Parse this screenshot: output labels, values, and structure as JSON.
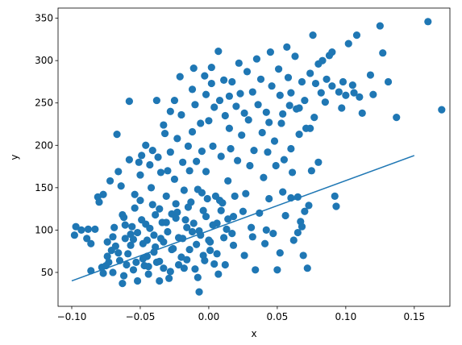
{
  "chart_data": {
    "type": "scatter",
    "title": "",
    "xlabel": "x",
    "ylabel": "y",
    "xlim": [
      -0.11,
      0.176
    ],
    "ylim": [
      10,
      362
    ],
    "x_ticks": [
      -0.1,
      -0.05,
      0.0,
      0.05,
      0.1,
      0.15
    ],
    "x_tick_labels": [
      "−0.10",
      "−0.05",
      "0.00",
      "0.05",
      "0.10",
      "0.15"
    ],
    "y_ticks": [
      50,
      100,
      150,
      200,
      250,
      300,
      350
    ],
    "y_tick_labels": [
      "50",
      "100",
      "150",
      "200",
      "250",
      "300",
      "350"
    ],
    "grid": false,
    "legend": "none",
    "colors": {
      "series": "#1f77b4",
      "axis": "#000000"
    },
    "series": [
      {
        "kind": "scatter",
        "points": [
          [
            -0.098,
            94
          ],
          [
            -0.097,
            104
          ],
          [
            -0.093,
            100
          ],
          [
            -0.089,
            90
          ],
          [
            -0.088,
            101
          ],
          [
            -0.086,
            84
          ],
          [
            -0.086,
            52
          ],
          [
            -0.083,
            101
          ],
          [
            -0.081,
            139
          ],
          [
            -0.08,
            133
          ],
          [
            -0.078,
            56
          ],
          [
            -0.077,
            49
          ],
          [
            -0.077,
            142
          ],
          [
            -0.075,
            58
          ],
          [
            -0.074,
            86
          ],
          [
            -0.073,
            62
          ],
          [
            -0.072,
            158
          ],
          [
            -0.071,
            76
          ],
          [
            -0.07,
            50
          ],
          [
            -0.069,
            103
          ],
          [
            -0.068,
            81
          ],
          [
            -0.067,
            213
          ],
          [
            -0.066,
            169
          ],
          [
            -0.065,
            64
          ],
          [
            -0.064,
            152
          ],
          [
            -0.063,
            118
          ],
          [
            -0.062,
            115
          ],
          [
            -0.063,
            37
          ],
          [
            -0.062,
            46
          ],
          [
            -0.061,
            90
          ],
          [
            -0.06,
            59
          ],
          [
            -0.059,
            72
          ],
          [
            -0.058,
            252
          ],
          [
            -0.058,
            183
          ],
          [
            -0.057,
            95
          ],
          [
            -0.056,
            104
          ],
          [
            -0.055,
            89
          ],
          [
            -0.055,
            53
          ],
          [
            -0.054,
            142
          ],
          [
            -0.054,
            126
          ],
          [
            -0.053,
            62
          ],
          [
            -0.052,
            40
          ],
          [
            -0.051,
            180
          ],
          [
            -0.05,
            165
          ],
          [
            -0.05,
            135
          ],
          [
            -0.049,
            188
          ],
          [
            -0.049,
            112
          ],
          [
            -0.048,
            84
          ],
          [
            -0.047,
            58
          ],
          [
            -0.046,
            200
          ],
          [
            -0.046,
            107
          ],
          [
            -0.045,
            69
          ],
          [
            -0.044,
            48
          ],
          [
            -0.043,
            177
          ],
          [
            -0.042,
            150
          ],
          [
            -0.041,
            194
          ],
          [
            -0.041,
            130
          ],
          [
            -0.04,
            94
          ],
          [
            -0.039,
            80
          ],
          [
            -0.038,
            253
          ],
          [
            -0.038,
            62
          ],
          [
            -0.037,
            186
          ],
          [
            -0.036,
            125
          ],
          [
            -0.036,
            40
          ],
          [
            -0.035,
            168
          ],
          [
            -0.034,
            109
          ],
          [
            -0.033,
            86
          ],
          [
            -0.033,
            55
          ],
          [
            -0.032,
            214
          ],
          [
            -0.031,
            140
          ],
          [
            -0.03,
            170
          ],
          [
            -0.03,
            98
          ],
          [
            -0.029,
            43
          ],
          [
            -0.028,
            192
          ],
          [
            -0.027,
            119
          ],
          [
            -0.026,
            78
          ],
          [
            -0.025,
            253
          ],
          [
            -0.025,
            160
          ],
          [
            -0.024,
            131
          ],
          [
            -0.023,
            208
          ],
          [
            -0.022,
            91
          ],
          [
            -0.022,
            59
          ],
          [
            -0.021,
            281
          ],
          [
            -0.02,
            236
          ],
          [
            -0.019,
            180
          ],
          [
            -0.018,
            147
          ],
          [
            -0.017,
            112
          ],
          [
            -0.016,
            65
          ],
          [
            -0.015,
            199
          ],
          [
            -0.014,
            170
          ],
          [
            -0.013,
            133
          ],
          [
            -0.012,
            216
          ],
          [
            -0.012,
            98
          ],
          [
            -0.011,
            291
          ],
          [
            -0.01,
            248
          ],
          [
            -0.01,
            54
          ],
          [
            -0.009,
            181
          ],
          [
            -0.008,
            148
          ],
          [
            -0.007,
            27
          ],
          [
            -0.006,
            226
          ],
          [
            -0.006,
            94
          ],
          [
            -0.005,
            193
          ],
          [
            -0.004,
            123
          ],
          [
            -0.003,
            282
          ],
          [
            -0.003,
            64
          ],
          [
            -0.002,
            260
          ],
          [
            -0.002,
            169
          ],
          [
            -0.001,
            137
          ],
          [
            0.0,
            229
          ],
          [
            0.0,
            88
          ],
          [
            0.001,
            76
          ],
          [
            0.002,
            292
          ],
          [
            0.003,
            199
          ],
          [
            0.004,
            245
          ],
          [
            0.005,
            140
          ],
          [
            0.006,
            108
          ],
          [
            0.007,
            311
          ],
          [
            0.007,
            48
          ],
          [
            0.008,
            253
          ],
          [
            0.009,
            187
          ],
          [
            0.01,
            132
          ],
          [
            0.011,
            277
          ],
          [
            0.012,
            235
          ],
          [
            0.012,
            59
          ],
          [
            0.013,
            101
          ],
          [
            0.014,
            158
          ],
          [
            0.015,
            220
          ],
          [
            0.016,
            196
          ],
          [
            0.017,
            275
          ],
          [
            0.018,
            82
          ],
          [
            0.019,
            140
          ],
          [
            0.02,
            246
          ],
          [
            0.021,
            182
          ],
          [
            0.022,
            297
          ],
          [
            0.023,
            261
          ],
          [
            0.024,
            212
          ],
          [
            0.025,
            122
          ],
          [
            0.026,
            70
          ],
          [
            0.027,
            143
          ],
          [
            0.028,
            287
          ],
          [
            0.029,
            230
          ],
          [
            0.03,
            176
          ],
          [
            0.031,
            103
          ],
          [
            0.032,
            263
          ],
          [
            0.033,
            194
          ],
          [
            0.034,
            53
          ],
          [
            0.035,
            302
          ],
          [
            0.036,
            248
          ],
          [
            0.037,
            120
          ],
          [
            0.038,
            278
          ],
          [
            0.039,
            215
          ],
          [
            0.04,
            162
          ],
          [
            0.041,
            84
          ],
          [
            0.042,
            239
          ],
          [
            0.043,
            192
          ],
          [
            0.044,
            137
          ],
          [
            0.045,
            310
          ],
          [
            0.046,
            270
          ],
          [
            0.047,
            96
          ],
          [
            0.048,
            205
          ],
          [
            0.049,
            176
          ],
          [
            0.05,
            53
          ],
          [
            0.051,
            290
          ],
          [
            0.052,
            259
          ],
          [
            0.053,
            226
          ],
          [
            0.054,
            145
          ],
          [
            0.055,
            183
          ],
          [
            0.056,
            117
          ],
          [
            0.057,
            316
          ],
          [
            0.058,
            280
          ],
          [
            0.059,
            247
          ],
          [
            0.06,
            196
          ],
          [
            0.061,
            168
          ],
          [
            0.062,
            88
          ],
          [
            0.063,
            305
          ],
          [
            0.064,
            243
          ],
          [
            0.065,
            139
          ],
          [
            0.066,
            213
          ],
          [
            0.067,
            110
          ],
          [
            0.068,
            275
          ],
          [
            0.069,
            70
          ],
          [
            0.07,
            253
          ],
          [
            0.071,
            220
          ],
          [
            0.072,
            55
          ],
          [
            0.073,
            129
          ],
          [
            0.074,
            285
          ],
          [
            0.075,
            170
          ],
          [
            0.076,
            330
          ],
          [
            0.077,
            233
          ],
          [
            0.078,
            273
          ],
          [
            0.08,
            180
          ],
          [
            0.082,
            262
          ],
          [
            0.083,
            300
          ],
          [
            0.085,
            251
          ],
          [
            0.086,
            278
          ],
          [
            0.088,
            306
          ],
          [
            0.09,
            310
          ],
          [
            0.092,
            140
          ],
          [
            0.093,
            128
          ],
          [
            0.095,
            263
          ],
          [
            0.097,
            244
          ],
          [
            0.098,
            275
          ],
          [
            0.1,
            259
          ],
          [
            0.102,
            320
          ],
          [
            0.105,
            271
          ],
          [
            0.108,
            330
          ],
          [
            0.11,
            257
          ],
          [
            0.112,
            238
          ],
          [
            0.118,
            283
          ],
          [
            0.12,
            260
          ],
          [
            0.125,
            341
          ],
          [
            0.127,
            309
          ],
          [
            0.131,
            275
          ],
          [
            0.137,
            233
          ],
          [
            0.16,
            346
          ],
          [
            0.17,
            242
          ],
          [
            -0.019,
            90
          ],
          [
            -0.016,
            103
          ],
          [
            -0.014,
            77
          ],
          [
            -0.011,
            108
          ],
          [
            -0.009,
            83
          ],
          [
            -0.007,
            99
          ],
          [
            -0.004,
            70
          ],
          [
            -0.002,
            116
          ],
          [
            0.001,
            86
          ],
          [
            0.003,
            106
          ],
          [
            0.006,
            72
          ],
          [
            0.009,
            123
          ],
          [
            0.011,
            91
          ],
          [
            0.014,
            113
          ],
          [
            0.017,
            96
          ],
          [
            -0.043,
            102
          ],
          [
            -0.039,
            118
          ],
          [
            -0.035,
            90
          ],
          [
            -0.031,
            109
          ],
          [
            -0.027,
            77
          ],
          [
            -0.024,
            114
          ],
          [
            -0.02,
            68
          ],
          [
            -0.045,
            88
          ],
          [
            -0.04,
            74
          ],
          [
            -0.052,
            97
          ],
          [
            -0.057,
            82
          ],
          [
            -0.061,
            106
          ],
          [
            -0.066,
            73
          ],
          [
            -0.07,
            92
          ],
          [
            -0.074,
            69
          ],
          [
            -0.048,
            66
          ],
          [
            -0.044,
            57
          ],
          [
            -0.036,
            63
          ],
          [
            -0.028,
            51
          ],
          [
            -0.018,
            55
          ],
          [
            -0.008,
            44
          ],
          [
            0.004,
            60
          ],
          [
            -0.023,
            121
          ],
          [
            -0.015,
            127
          ],
          [
            -0.005,
            144
          ],
          [
            0.008,
            135
          ],
          [
            0.018,
            116
          ],
          [
            0.032,
            92
          ],
          [
            0.042,
            100
          ],
          [
            0.052,
            73
          ],
          [
            0.06,
            138
          ],
          [
            0.065,
            97
          ],
          [
            0.068,
            104
          ],
          [
            0.07,
            122
          ],
          [
            -0.033,
            224
          ],
          [
            -0.028,
            240
          ],
          [
            -0.012,
            266
          ],
          [
            0.002,
            273
          ],
          [
            0.015,
            258
          ],
          [
            0.026,
            238
          ],
          [
            0.044,
            227
          ],
          [
            0.054,
            237
          ],
          [
            0.06,
            262
          ],
          [
            0.066,
            244
          ],
          [
            0.074,
            220
          ],
          [
            0.08,
            296
          ],
          [
            0.09,
            270
          ],
          [
            0.106,
            262
          ]
        ]
      },
      {
        "kind": "line",
        "points": [
          [
            -0.1,
            40
          ],
          [
            0.15,
            188
          ]
        ]
      }
    ]
  }
}
